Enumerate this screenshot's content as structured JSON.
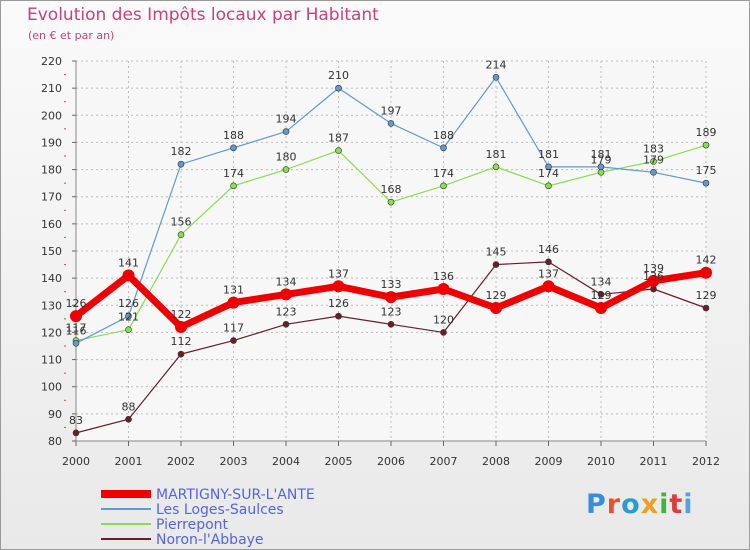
{
  "header": {
    "title": "Evolution des Impôts locaux par Habitant",
    "subtitle": "(en € et par an)"
  },
  "logo": {
    "text": "Proxiti"
  },
  "chart_data": {
    "type": "line",
    "title": "Evolution des Impôts locaux par Habitant",
    "subtitle": "(en € et par an)",
    "xlabel": "",
    "ylabel": "",
    "ylim": [
      80,
      220
    ],
    "ytick_step": 10,
    "grid": true,
    "legend_position": "bottom-left",
    "categories": [
      "2000",
      "2001",
      "2002",
      "2003",
      "2004",
      "2005",
      "2006",
      "2007",
      "2008",
      "2009",
      "2010",
      "2011",
      "2012"
    ],
    "series": [
      {
        "name": "MARTIGNY-SUR-L'ANTE",
        "color": "#ee0000",
        "values": [
          126,
          141,
          122,
          131,
          134,
          137,
          133,
          136,
          129,
          137,
          129,
          139,
          142
        ]
      },
      {
        "name": "Les Loges-Saulces",
        "color": "#5f9bd2",
        "values": [
          116,
          126,
          182,
          188,
          194,
          210,
          197,
          188,
          214,
          181,
          181,
          179,
          175
        ]
      },
      {
        "name": "Pierrepont",
        "color": "#88dd55",
        "values": [
          117,
          121,
          156,
          174,
          180,
          187,
          168,
          174,
          181,
          174,
          179,
          183,
          189
        ]
      },
      {
        "name": "Noron-l'Abbaye",
        "color": "#6b1f25",
        "values": [
          83,
          88,
          112,
          117,
          123,
          126,
          123,
          120,
          145,
          146,
          134,
          136,
          129
        ]
      }
    ]
  }
}
